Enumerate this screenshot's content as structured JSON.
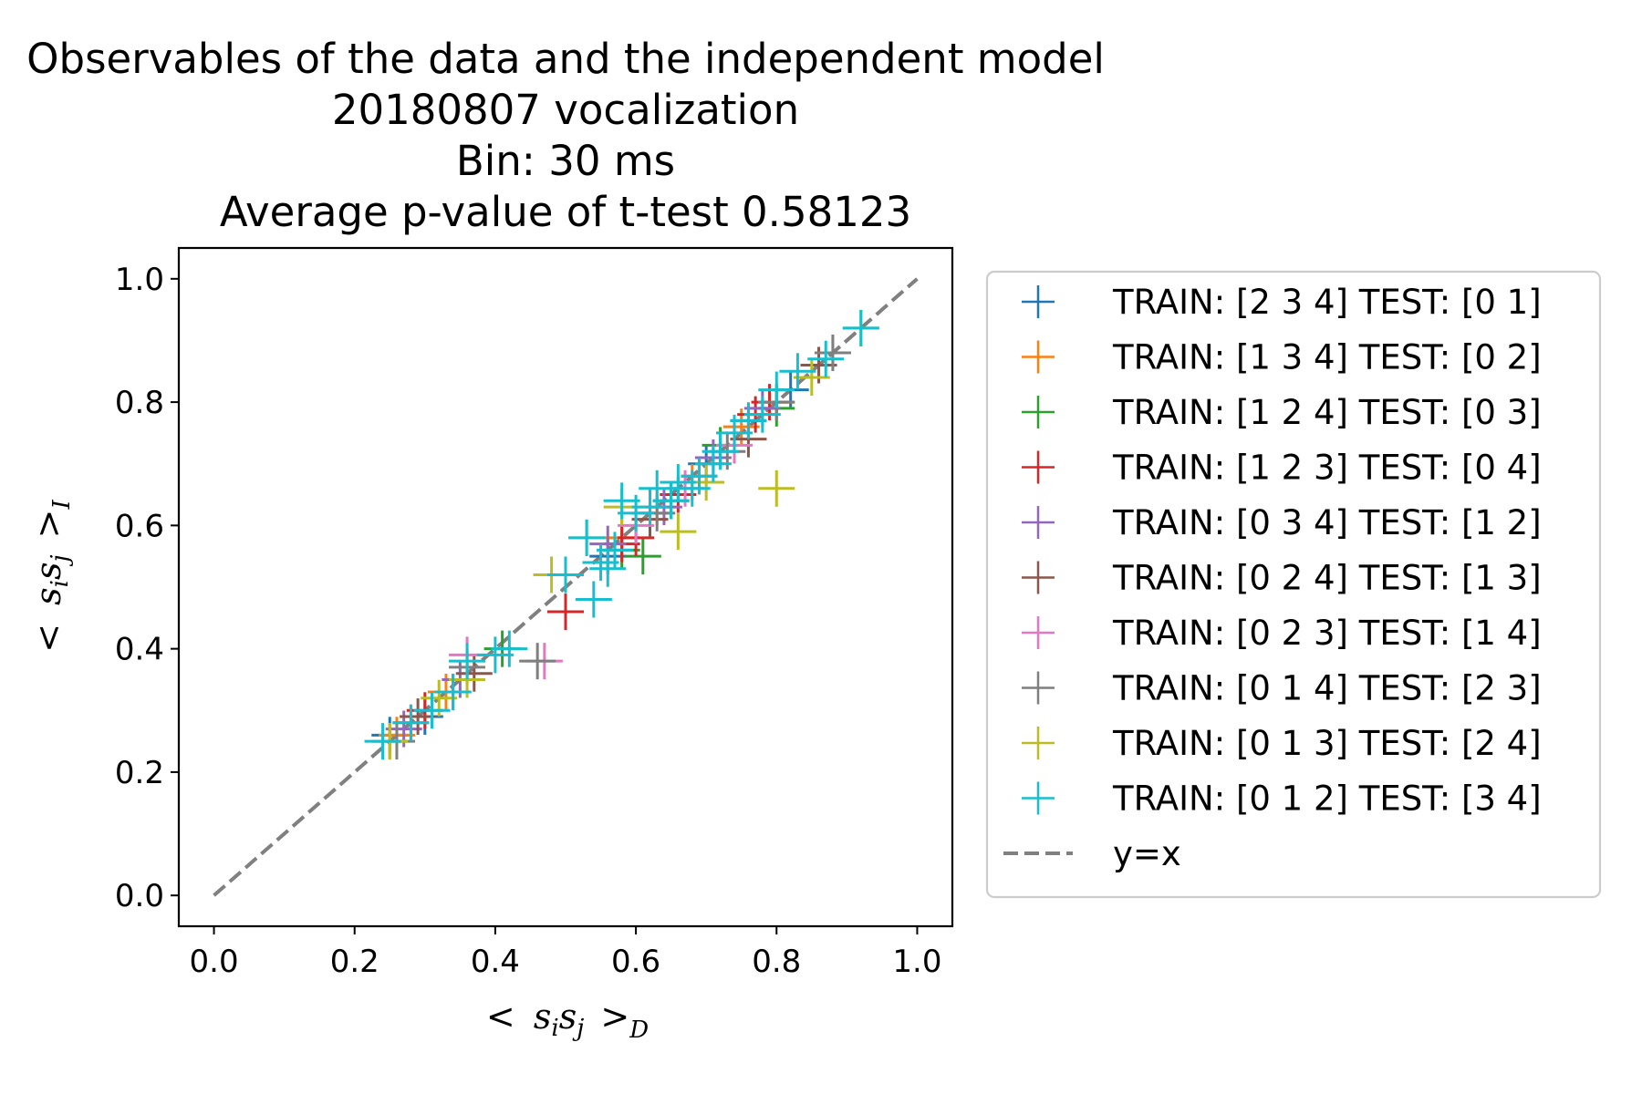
{
  "chart_data": {
    "type": "scatter",
    "title_lines": [
      "Observables of the data and the independent model",
      "20180807 vocalization",
      "Bin: 30 ms",
      "Average p-value of t-test 0.58123"
    ],
    "xlabel": "< s_i s_j >_D",
    "ylabel": "< s_i s_j >_I",
    "xlabel_parts": {
      "lt": "<",
      "s1": "s",
      "sub1": "i",
      "s2": "s",
      "sub2": "j",
      "gt": ">",
      "sub": "D"
    },
    "ylabel_parts": {
      "lt": "<",
      "s1": "s",
      "sub1": "i",
      "s2": "s",
      "sub2": "j",
      "gt": ">",
      "sub": "I"
    },
    "xlim": [
      -0.05,
      1.05
    ],
    "ylim": [
      -0.05,
      1.05
    ],
    "x_ticks": [
      0.0,
      0.2,
      0.4,
      0.6,
      0.8,
      1.0
    ],
    "y_ticks": [
      0.0,
      0.2,
      0.4,
      0.6,
      0.8,
      1.0
    ],
    "x_tick_labels": [
      "0.0",
      "0.2",
      "0.4",
      "0.6",
      "0.8",
      "1.0"
    ],
    "y_tick_labels": [
      "0.0",
      "0.2",
      "0.4",
      "0.6",
      "0.8",
      "1.0"
    ],
    "grid": false,
    "legend_position": "outside right",
    "marker": "+",
    "colors": [
      "#1f77b4",
      "#ff7f0e",
      "#2ca02c",
      "#d62728",
      "#9467bd",
      "#8c564b",
      "#e377c2",
      "#7f7f7f",
      "#bcbd22",
      "#17becf"
    ],
    "series": [
      {
        "name": "TRAIN: [2 3 4] TEST: [0 1]",
        "color": "#1f77b4",
        "points": [
          [
            0.25,
            0.26
          ],
          [
            0.3,
            0.29
          ],
          [
            0.34,
            0.33
          ],
          [
            0.56,
            0.55
          ],
          [
            0.62,
            0.62
          ],
          [
            0.7,
            0.7
          ],
          [
            0.76,
            0.77
          ],
          [
            0.82,
            0.82
          ]
        ]
      },
      {
        "name": "TRAIN: [1 3 4] TEST: [0 2]",
        "color": "#ff7f0e",
        "points": [
          [
            0.26,
            0.26
          ],
          [
            0.33,
            0.33
          ],
          [
            0.58,
            0.58
          ],
          [
            0.63,
            0.63
          ],
          [
            0.68,
            0.67
          ],
          [
            0.75,
            0.76
          ],
          [
            0.8,
            0.8
          ]
        ]
      },
      {
        "name": "TRAIN: [1 2 4] TEST: [0 3]",
        "color": "#2ca02c",
        "points": [
          [
            0.28,
            0.28
          ],
          [
            0.41,
            0.4
          ],
          [
            0.58,
            0.56
          ],
          [
            0.61,
            0.55
          ],
          [
            0.65,
            0.64
          ],
          [
            0.72,
            0.73
          ],
          [
            0.8,
            0.79
          ]
        ]
      },
      {
        "name": "TRAIN: [1 2 3] TEST: [0 4]",
        "color": "#d62728",
        "points": [
          [
            0.3,
            0.3
          ],
          [
            0.5,
            0.46
          ],
          [
            0.58,
            0.57
          ],
          [
            0.6,
            0.58
          ],
          [
            0.66,
            0.65
          ],
          [
            0.77,
            0.78
          ],
          [
            0.79,
            0.8
          ]
        ]
      },
      {
        "name": "TRAIN: [0 3 4] TEST: [1 2]",
        "color": "#9467bd",
        "points": [
          [
            0.27,
            0.27
          ],
          [
            0.35,
            0.35
          ],
          [
            0.56,
            0.57
          ],
          [
            0.64,
            0.63
          ],
          [
            0.71,
            0.71
          ],
          [
            0.78,
            0.79
          ]
        ]
      },
      {
        "name": "TRAIN: [0 2 4] TEST: [1 3]",
        "color": "#8c564b",
        "points": [
          [
            0.29,
            0.29
          ],
          [
            0.37,
            0.36
          ],
          [
            0.62,
            0.61
          ],
          [
            0.69,
            0.68
          ],
          [
            0.76,
            0.74
          ],
          [
            0.86,
            0.86
          ]
        ]
      },
      {
        "name": "TRAIN: [0 2 3] TEST: [1 4]",
        "color": "#e377c2",
        "points": [
          [
            0.25,
            0.25
          ],
          [
            0.36,
            0.39
          ],
          [
            0.47,
            0.38
          ],
          [
            0.6,
            0.6
          ],
          [
            0.67,
            0.66
          ],
          [
            0.74,
            0.73
          ],
          [
            0.88,
            0.88
          ]
        ]
      },
      {
        "name": "TRAIN: [0 1 4] TEST: [2 3]",
        "color": "#7f7f7f",
        "points": [
          [
            0.26,
            0.25
          ],
          [
            0.36,
            0.37
          ],
          [
            0.46,
            0.38
          ],
          [
            0.63,
            0.62
          ],
          [
            0.73,
            0.72
          ],
          [
            0.8,
            0.8
          ],
          [
            0.88,
            0.88
          ]
        ]
      },
      {
        "name": "TRAIN: [0 1 3] TEST: [2 4]",
        "color": "#bcbd22",
        "points": [
          [
            0.25,
            0.25
          ],
          [
            0.32,
            0.32
          ],
          [
            0.36,
            0.35
          ],
          [
            0.48,
            0.52
          ],
          [
            0.53,
            0.58
          ],
          [
            0.58,
            0.63
          ],
          [
            0.66,
            0.59
          ],
          [
            0.7,
            0.67
          ],
          [
            0.8,
            0.66
          ],
          [
            0.85,
            0.84
          ],
          [
            0.92,
            0.92
          ]
        ]
      },
      {
        "name": "TRAIN: [0 1 2] TEST: [3 4]",
        "color": "#17becf",
        "points": [
          [
            0.24,
            0.25
          ],
          [
            0.28,
            0.28
          ],
          [
            0.31,
            0.3
          ],
          [
            0.34,
            0.33
          ],
          [
            0.36,
            0.38
          ],
          [
            0.4,
            0.39
          ],
          [
            0.42,
            0.4
          ],
          [
            0.5,
            0.52
          ],
          [
            0.53,
            0.58
          ],
          [
            0.54,
            0.48
          ],
          [
            0.55,
            0.54
          ],
          [
            0.56,
            0.53
          ],
          [
            0.57,
            0.56
          ],
          [
            0.58,
            0.64
          ],
          [
            0.6,
            0.62
          ],
          [
            0.62,
            0.63
          ],
          [
            0.63,
            0.66
          ],
          [
            0.65,
            0.64
          ],
          [
            0.66,
            0.67
          ],
          [
            0.68,
            0.66
          ],
          [
            0.69,
            0.68
          ],
          [
            0.71,
            0.7
          ],
          [
            0.72,
            0.72
          ],
          [
            0.74,
            0.75
          ],
          [
            0.76,
            0.77
          ],
          [
            0.78,
            0.78
          ],
          [
            0.8,
            0.82
          ],
          [
            0.83,
            0.85
          ],
          [
            0.87,
            0.87
          ],
          [
            0.92,
            0.92
          ]
        ]
      }
    ],
    "reference_line": {
      "name": "y=x",
      "color": "#808080",
      "style": "dashed",
      "points": [
        [
          0.0,
          0.0
        ],
        [
          1.0,
          1.0
        ]
      ]
    }
  }
}
